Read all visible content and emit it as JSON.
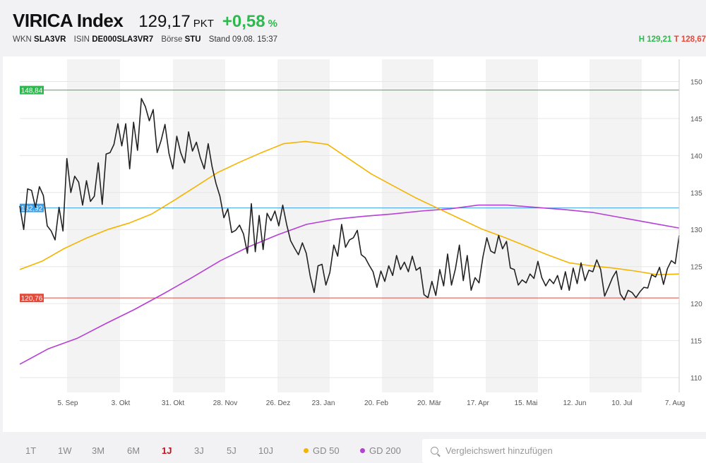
{
  "header": {
    "name": "VIRICA Index",
    "price": "129,17",
    "price_unit": "PKT",
    "change": "+0,58",
    "change_unit": "%",
    "wkn_label": "WKN",
    "wkn": "SLA3VR",
    "isin_label": "ISIN",
    "isin": "DE000SLA3VR7",
    "exchange_label": "Börse",
    "exchange": "STU",
    "stand": "Stand 09.08. 15:37",
    "high": "H 129,21",
    "low": "T 128,67"
  },
  "toolbar": {
    "periods": [
      "1T",
      "1W",
      "3M",
      "6M",
      "1J",
      "3J",
      "5J",
      "10J"
    ],
    "active_period": "1J",
    "legend": [
      {
        "label": "GD 50",
        "color": "#f5b400"
      },
      {
        "label": "GD 200",
        "color": "#b63fd6"
      }
    ],
    "search_placeholder": "Vergleichswert hinzufügen"
  },
  "chart_data": {
    "type": "line",
    "ylim": [
      108,
      153
    ],
    "yticks": [
      110,
      115,
      120,
      125,
      130,
      135,
      140,
      145,
      150
    ],
    "ytick_labels": [
      "110",
      "115",
      "120",
      "125",
      "130",
      "135",
      "140",
      "145",
      "150"
    ],
    "xtick_labels": [
      "5. Sep",
      "3. Okt",
      "31. Okt",
      "28. Nov",
      "26. Dez",
      "23. Jan",
      "20. Feb",
      "20. Mär",
      "17. Apr",
      "15. Mai",
      "12. Jun",
      "10. Jul",
      "7. Aug"
    ],
    "grid": true,
    "reference_lines": [
      {
        "label": "148,84",
        "value": 148.84,
        "color": "#2fb84f"
      },
      {
        "label": "132,92",
        "value": 132.92,
        "color": "#3b9ee8"
      },
      {
        "label": "120,76",
        "value": 120.76,
        "color": "#e24a3b"
      }
    ],
    "series": [
      {
        "name": "VIRICA Index",
        "color": "#222222",
        "values": [
          133.2,
          130,
          135.5,
          135.3,
          133,
          135.8,
          134.6,
          130.5,
          129.8,
          128.6,
          133,
          129.8,
          139.6,
          135,
          137.2,
          136.4,
          133.3,
          136.6,
          133.8,
          134.5,
          139,
          133.4,
          140.2,
          140.4,
          141.5,
          144.3,
          141.3,
          144.3,
          138.2,
          144.5,
          140.7,
          147.7,
          146.6,
          144.7,
          146.2,
          140.4,
          142,
          144.2,
          140.3,
          138.2,
          142.6,
          140.4,
          139,
          143.2,
          140.6,
          141.8,
          139.7,
          138.2,
          141.6,
          138.5,
          136.2,
          134.5,
          131.6,
          132.8,
          129.6,
          129.9,
          130.6,
          129.4,
          126.8,
          133.5,
          127,
          131.9,
          127.3,
          132.2,
          131.2,
          132.5,
          130.5,
          133.3,
          130.7,
          128.5,
          127.5,
          126.6,
          128.2,
          126.8,
          123.7,
          121.5,
          125.1,
          125.3,
          122.5,
          124.2,
          127.9,
          126.4,
          130.7,
          127.6,
          128.6,
          128.9,
          129.9,
          126.6,
          126.2,
          125.2,
          124.3,
          122.2,
          124.4,
          123,
          125.1,
          123.8,
          126.5,
          124.6,
          125.6,
          124.3,
          126.4,
          124.5,
          124.9,
          121.2,
          120.8,
          123,
          121.1,
          124.6,
          122.4,
          126.7,
          122.5,
          124.7,
          127.9,
          123.1,
          126.5,
          121.8,
          123.5,
          122.8,
          126.3,
          128.9,
          127.1,
          126.8,
          129.2,
          127.4,
          128.4,
          124.8,
          124.6,
          122.5,
          123.2,
          122.8,
          124,
          123.4,
          125.7,
          123.5,
          122.4,
          123.3,
          122.7,
          123.8,
          121.9,
          124.3,
          121.8,
          124.8,
          122.7,
          125.5,
          123.1,
          124.5,
          124.3,
          125.9,
          124.6,
          121,
          122.2,
          123.5,
          124.4,
          121.3,
          120.5,
          121.8,
          121.5,
          120.8,
          121.6,
          122.2,
          122.1,
          123.9,
          123.6,
          124.9,
          122.6,
          124.7,
          125.8,
          125.4,
          129.2
        ]
      },
      {
        "name": "GD 50",
        "color": "#f5b400",
        "values": [
          124.6,
          125.7,
          127.4,
          128.8,
          130,
          130.9,
          132.1,
          133.9,
          135.8,
          137.7,
          139.1,
          140.4,
          141.6,
          141.9,
          141.5,
          139.5,
          137.5,
          135.9,
          134.3,
          132.9,
          131.5,
          130.1,
          129,
          127.8,
          126.6,
          125.5,
          125.1,
          124.8,
          124.4,
          123.9,
          124
        ]
      },
      {
        "name": "GD 200",
        "color": "#b63fd6",
        "values": [
          111.8,
          113.9,
          115.3,
          117.3,
          119.2,
          121.3,
          123.5,
          125.8,
          127.7,
          129.3,
          130.7,
          131.4,
          131.8,
          132.1,
          132.5,
          132.8,
          133.3,
          133.3,
          133,
          132.7,
          132.3,
          131.6,
          130.9,
          130.2
        ]
      }
    ]
  }
}
